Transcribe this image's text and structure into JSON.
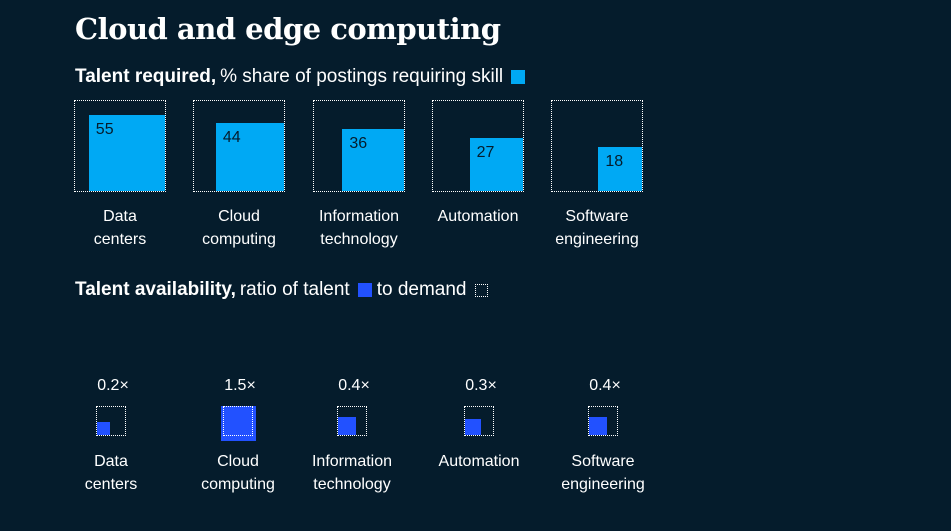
{
  "title": "Cloud and edge computing",
  "colors": {
    "background": "#051c2c",
    "required_fill": "#00a9f4",
    "talent_fill": "#2251ff"
  },
  "talent_required": {
    "heading_bold": "Talent required,",
    "heading_rest": "% share of postings requiring skill"
  },
  "talent_availability": {
    "heading_bold": "Talent availability,",
    "heading_mid": "ratio of talent",
    "heading_end": "to demand"
  },
  "chart_data": [
    {
      "type": "bar",
      "title": "Talent required, % share of postings requiring skill",
      "unit": "%",
      "categories": [
        [
          "Data",
          "centers"
        ],
        [
          "Cloud",
          "computing"
        ],
        [
          "Information",
          "technology"
        ],
        [
          "Automation"
        ],
        [
          "Software",
          "engineering"
        ]
      ],
      "values": [
        55,
        44,
        36,
        27,
        18
      ],
      "value_labels": [
        "55",
        "44",
        "36",
        "27",
        "18"
      ],
      "ylim": [
        0,
        75
      ]
    },
    {
      "type": "bar",
      "title": "Talent availability, ratio of talent to demand",
      "categories": [
        [
          "Data",
          "centers"
        ],
        [
          "Cloud",
          "computing"
        ],
        [
          "Information",
          "technology"
        ],
        [
          "Automation"
        ],
        [
          "Software",
          "engineering"
        ]
      ],
      "values": [
        0.2,
        1.5,
        0.4,
        0.3,
        0.4
      ],
      "value_labels": [
        "0.2×",
        "1.5×",
        "0.4×",
        "0.3×",
        "0.4×"
      ]
    }
  ]
}
